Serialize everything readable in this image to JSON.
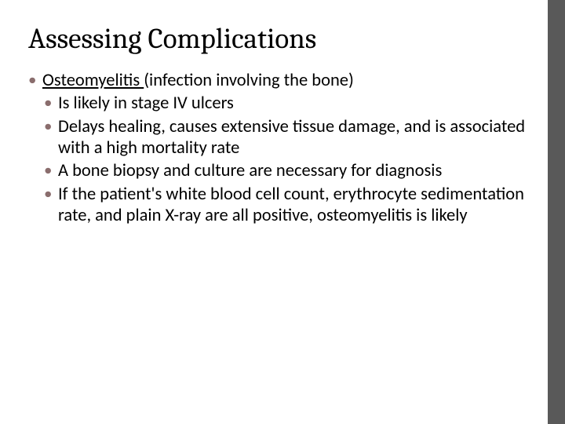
{
  "slide": {
    "title": "Assessing Complications",
    "bullet_color": "#8a6d6d",
    "sidebar_color": "#595959",
    "background_color": "#ffffff",
    "text_color": "#000000",
    "title_fontsize": 37,
    "body_fontsize": 22.5,
    "main_item": {
      "term": "Osteomyelitis ",
      "definition": "(infection involving the bone)"
    },
    "sub_items": [
      "Is likely in stage IV ulcers",
      "Delays healing, causes extensive tissue damage, and is associated with a high mortality rate",
      "A bone biopsy and culture are necessary for diagnosis",
      "If the patient's white blood cell count, erythrocyte sedimentation rate, and plain X-ray are all positive, osteomyelitis is likely"
    ]
  }
}
